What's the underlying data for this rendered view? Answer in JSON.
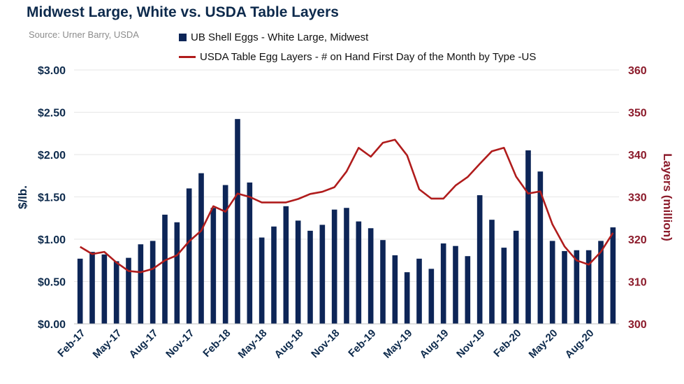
{
  "title": "Midwest Large, White vs. USDA Table Layers",
  "source": "Source: Urner Barry, USDA",
  "colors": {
    "bar": "#0d2557",
    "line": "#b01c1c",
    "left_axis": "#0d2a4c",
    "right_axis": "#8b1a2a",
    "grid": "#e6e6e6"
  },
  "chart_data": {
    "type": "bar+line",
    "legend": [
      "UB Shell Eggs - White Large, Midwest",
      "USDA Table Egg Layers - # on Hand First Day of the Month by Type -US"
    ],
    "legend_placement": "top",
    "ylabel_left": "$/lb.",
    "ylabel_right": "Layers (million)",
    "ylim_left": [
      0,
      3
    ],
    "ylim_right": [
      300,
      360
    ],
    "yticks_left": [
      "$0.00",
      "$0.50",
      "$1.00",
      "$1.50",
      "$2.00",
      "$2.50",
      "$3.00"
    ],
    "yticks_right": [
      "300",
      "310",
      "320",
      "330",
      "340",
      "350",
      "360"
    ],
    "grid": true,
    "x_tick_labels": [
      "Feb-17",
      "May-17",
      "Aug-17",
      "Nov-17",
      "Feb-18",
      "May-18",
      "Aug-18",
      "Nov-18",
      "Feb-19",
      "May-19",
      "Aug-19",
      "Nov-19",
      "Feb-20",
      "May-20",
      "Aug-20"
    ],
    "x_tick_every": 3,
    "months": [
      "Feb-17",
      "Mar-17",
      "Apr-17",
      "May-17",
      "Jun-17",
      "Jul-17",
      "Aug-17",
      "Sep-17",
      "Oct-17",
      "Nov-17",
      "Dec-17",
      "Jan-18",
      "Feb-18",
      "Mar-18",
      "Apr-18",
      "May-18",
      "Jun-18",
      "Jul-18",
      "Aug-18",
      "Sep-18",
      "Oct-18",
      "Nov-18",
      "Dec-18",
      "Jan-19",
      "Feb-19",
      "Mar-19",
      "Apr-19",
      "May-19",
      "Jun-19",
      "Jul-19",
      "Aug-19",
      "Sep-19",
      "Oct-19",
      "Nov-19",
      "Dec-19",
      "Jan-20",
      "Feb-20",
      "Mar-20",
      "Apr-20",
      "May-20",
      "Jun-20",
      "Jul-20",
      "Aug-20",
      "Sep-20",
      "Oct-20"
    ],
    "series": [
      {
        "name": "UB Shell Eggs - White Large, Midwest",
        "type": "bar",
        "axis": "left",
        "values": [
          0.77,
          0.85,
          0.82,
          0.74,
          0.78,
          0.94,
          0.98,
          1.29,
          1.2,
          1.6,
          1.78,
          1.37,
          1.64,
          2.42,
          1.67,
          1.02,
          1.15,
          1.39,
          1.22,
          1.1,
          1.17,
          1.35,
          1.37,
          1.21,
          1.13,
          0.99,
          0.81,
          0.61,
          0.77,
          0.65,
          0.95,
          0.92,
          0.8,
          1.52,
          1.23,
          0.9,
          1.1,
          2.05,
          1.8,
          0.98,
          0.86,
          0.87,
          0.87,
          0.98,
          1.14
        ]
      },
      {
        "name": "USDA Table Egg Layers - # on Hand First Day of the Month by Type -US",
        "type": "line",
        "axis": "right",
        "values": [
          318.2,
          316.5,
          317.0,
          314.5,
          312.5,
          312.2,
          313.0,
          315.0,
          316.2,
          319.5,
          322.0,
          327.8,
          326.5,
          330.8,
          330.0,
          328.7,
          328.7,
          328.7,
          329.5,
          330.7,
          331.2,
          332.3,
          336.0,
          341.6,
          339.5,
          342.8,
          343.5,
          339.8,
          331.8,
          329.6,
          329.6,
          332.7,
          334.7,
          337.8,
          340.8,
          341.6,
          334.8,
          330.8,
          331.3,
          323.5,
          318.3,
          315.0,
          314.0,
          317.0,
          321.5
        ]
      }
    ]
  }
}
